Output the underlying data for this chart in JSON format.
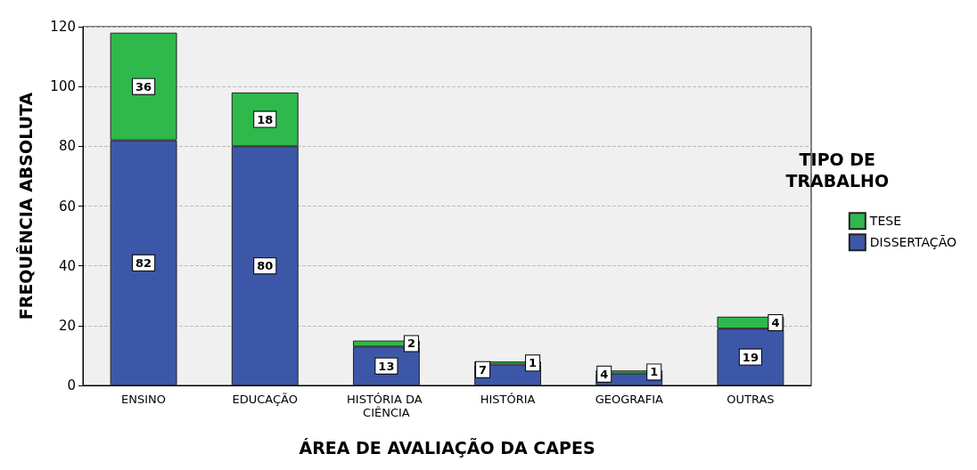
{
  "chart_data": {
    "type": "bar",
    "stacked": true,
    "xlabel": "ÁREA DE AVALIAÇÃO DA CAPES",
    "ylabel": "FREQUÊNCIA ABSOLUTA",
    "legend_title": "TIPO DE TRABALHO",
    "legend": "right",
    "categories": [
      "ENSINO",
      "EDUCAÇÃO",
      "HISTÓRIA DA CIÊNCIA",
      "HISTÓRIA",
      "GEOGRAFIA",
      "OUTRAS"
    ],
    "series": [
      {
        "name": "DISSERTAÇÃO",
        "color": "#3d57a8",
        "values": [
          82,
          80,
          13,
          7,
          4,
          19
        ]
      },
      {
        "name": "TESE",
        "color": "#2fb84c",
        "values": [
          36,
          18,
          2,
          1,
          1,
          4
        ]
      }
    ],
    "ylim": [
      0,
      120
    ],
    "yticks": [
      0,
      20,
      40,
      60,
      80,
      100,
      120
    ],
    "grid": "y",
    "data_labels": true
  }
}
